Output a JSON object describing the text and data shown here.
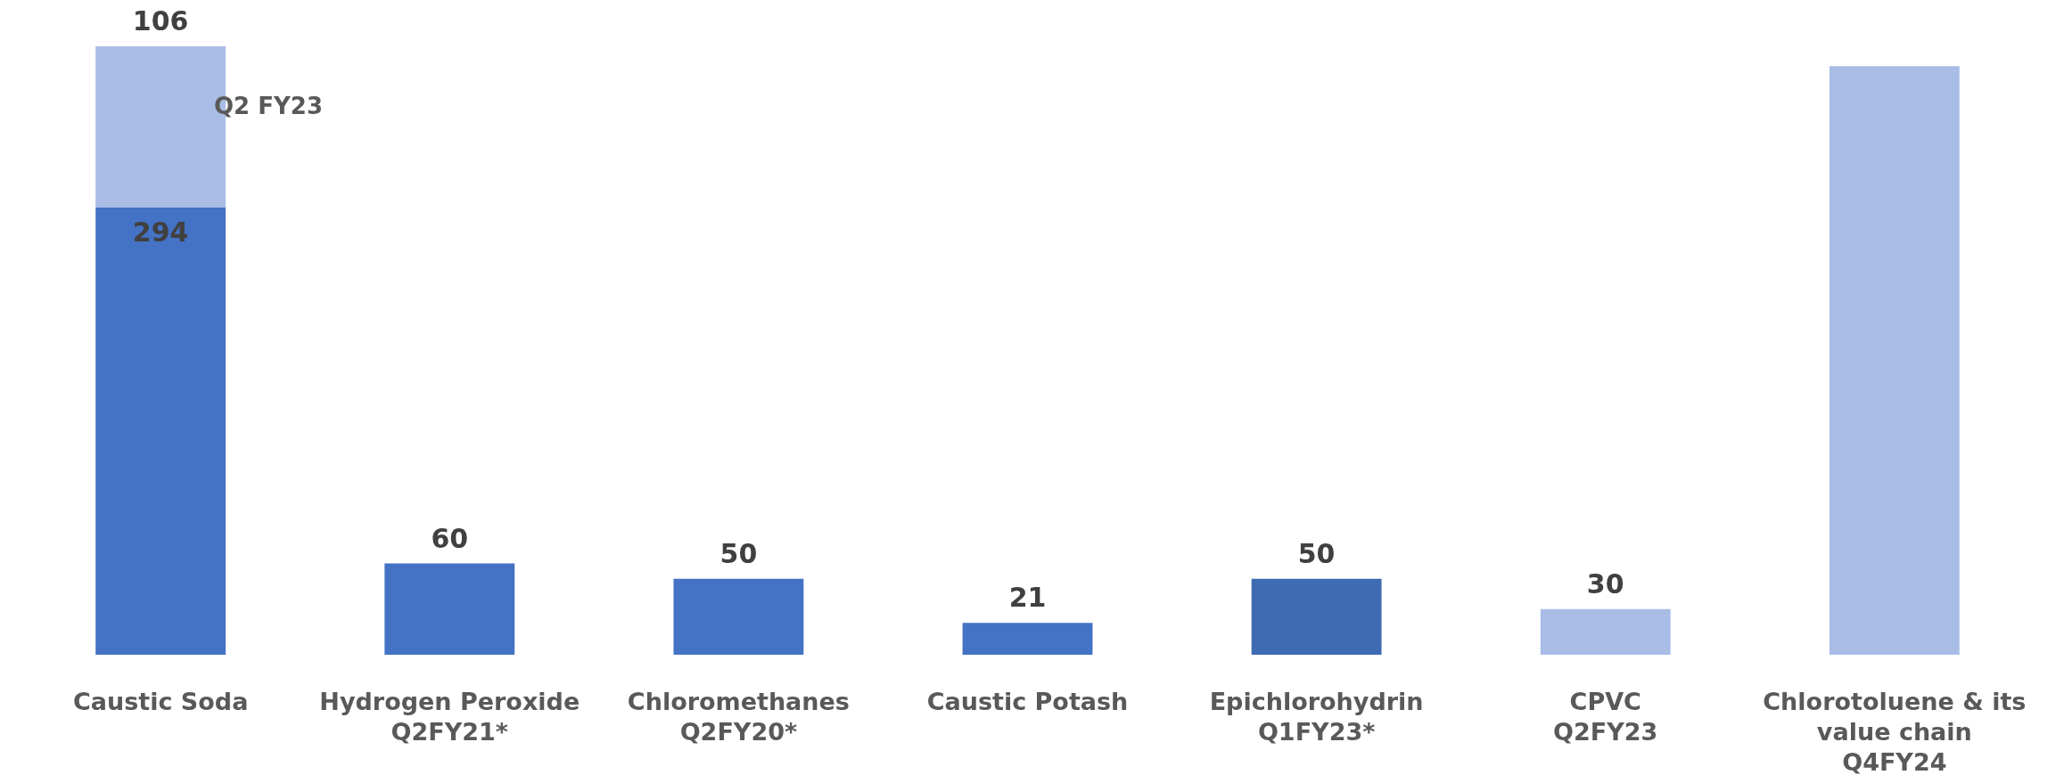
{
  "chart_data": {
    "type": "bar",
    "stacked": true,
    "tick_labels": "x",
    "categories": [
      "Caustic Soda",
      "Hydrogen Peroxide\nQ2FY21*",
      "Chloromethanes\nQ2FY20*",
      "Caustic Potash",
      "Epichlorohydrin\nQ1FY23*",
      "CPVC\nQ2FY23",
      "Chlorotoluene & its\nvalue chain\nQ4FY24"
    ],
    "series": [
      {
        "color": "#4472c4",
        "colors": [
          null,
          null,
          null,
          null,
          "#3f6bb3",
          null,
          null
        ],
        "values": [
          294,
          60,
          50,
          21,
          50,
          null,
          null
        ],
        "value_labels": [
          "294",
          "60",
          "50",
          "21",
          "50",
          null,
          null
        ]
      },
      {
        "color": "#a9bce6",
        "values": [
          106,
          null,
          null,
          null,
          null,
          30,
          387
        ],
        "value_labels": [
          "106",
          null,
          null,
          null,
          null,
          "30",
          null
        ]
      }
    ],
    "annotations": [
      "Q2 FY23"
    ]
  }
}
